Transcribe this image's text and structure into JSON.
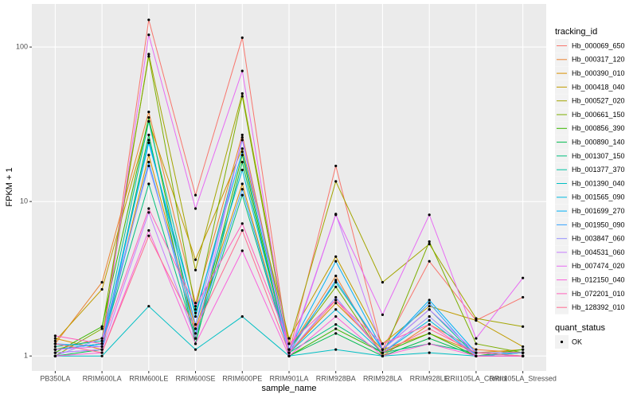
{
  "chart_data": {
    "type": "line",
    "x_label": "sample_name",
    "y_label": "FPKM + 1",
    "log_y": true,
    "grid": true,
    "legend_title": "tracking_id",
    "point_legend_title": "quant_status",
    "point_legend_label": "OK",
    "point_color": "#000000",
    "categories": [
      "PB350LA",
      "RRIM600LA",
      "RRIM600LE",
      "RRIM600SE",
      "RRIM600PE",
      "RRIM901LA",
      "RRIM928BA",
      "RRIM928LA",
      "RRIM928LE",
      "RRII105LA_Control",
      "RRII105LA_Stressed"
    ],
    "ylim": [
      0.8,
      190
    ],
    "yticks": [
      1,
      10,
      100
    ],
    "series": [
      {
        "name": "Hb_000069_650",
        "color": "#F8766D",
        "values": [
          1.1,
          1.2,
          150,
          11,
          115,
          1.05,
          17,
          1.1,
          4.1,
          1.7,
          2.4
        ]
      },
      {
        "name": "Hb_000317_120",
        "color": "#EA8331",
        "values": [
          1.2,
          3.0,
          38,
          2.2,
          27,
          1.1,
          3.3,
          1.0,
          1.6,
          1.1,
          1.05
        ]
      },
      {
        "name": "Hb_000390_010",
        "color": "#D89000",
        "values": [
          1.3,
          1.1,
          20,
          1.5,
          13,
          1.05,
          2.2,
          1.1,
          1.4,
          1.05,
          1.1
        ]
      },
      {
        "name": "Hb_000418_040",
        "color": "#C09B00",
        "values": [
          1.25,
          2.7,
          33,
          4.2,
          22,
          1.3,
          4.4,
          1.2,
          2.1,
          1.7,
          1.15
        ]
      },
      {
        "name": "Hb_000527_020",
        "color": "#A3A500",
        "values": [
          1.1,
          1.3,
          90,
          3.6,
          50,
          1.2,
          13.5,
          3.0,
          5.3,
          1.75,
          1.55
        ]
      },
      {
        "name": "Hb_000661_150",
        "color": "#7CAE00",
        "values": [
          1.0,
          1.5,
          87,
          2.0,
          48,
          1.1,
          2.8,
          1.0,
          5.5,
          1.2,
          1.05
        ]
      },
      {
        "name": "Hb_000856_390",
        "color": "#39B600",
        "values": [
          1.05,
          1.55,
          35,
          1.3,
          20,
          1.0,
          1.5,
          1.05,
          1.4,
          1.0,
          1.1
        ]
      },
      {
        "name": "Hb_000890_140",
        "color": "#00BB4E",
        "values": [
          1.0,
          1.1,
          27,
          1.2,
          18,
          1.0,
          1.4,
          1.0,
          1.3,
          1.0,
          1.05
        ]
      },
      {
        "name": "Hb_001307_150",
        "color": "#00BF7D",
        "values": [
          1.1,
          1.2,
          13,
          1.3,
          11,
          1.05,
          1.6,
          1.05,
          1.2,
          1.05,
          1.0
        ]
      },
      {
        "name": "Hb_001377_370",
        "color": "#00C1A3",
        "values": [
          1.15,
          1.25,
          33,
          1.8,
          25,
          1.1,
          3.0,
          1.1,
          2.0,
          1.0,
          1.05
        ]
      },
      {
        "name": "Hb_001390_040",
        "color": "#00BFC4",
        "values": [
          1.0,
          1.0,
          2.1,
          1.1,
          1.8,
          1.0,
          1.1,
          1.0,
          1.05,
          1.0,
          1.0
        ]
      },
      {
        "name": "Hb_001565_090",
        "color": "#00BAE0",
        "values": [
          1.05,
          1.1,
          25,
          1.6,
          16,
          1.05,
          2.0,
          1.05,
          1.7,
          1.0,
          1.05
        ]
      },
      {
        "name": "Hb_001699_270",
        "color": "#00B0F6",
        "values": [
          1.1,
          1.2,
          24,
          1.9,
          21,
          1.1,
          4.1,
          1.1,
          2.3,
          1.05,
          1.05
        ]
      },
      {
        "name": "Hb_001950_090",
        "color": "#35A2FF",
        "values": [
          1.2,
          1.15,
          18,
          1.4,
          12,
          1.05,
          3.1,
          1.1,
          2.2,
          1.0,
          1.0
        ]
      },
      {
        "name": "Hb_003847_060",
        "color": "#9590FF",
        "values": [
          1.0,
          1.3,
          17,
          1.6,
          25,
          1.05,
          2.4,
          1.05,
          1.8,
          1.0,
          1.0
        ]
      },
      {
        "name": "Hb_004531_060",
        "color": "#C77CFF",
        "values": [
          1.05,
          1.1,
          8.5,
          1.3,
          26,
          1.0,
          8.3,
          1.1,
          2.0,
          1.05,
          1.05
        ]
      },
      {
        "name": "Hb_007474_020",
        "color": "#E76BF3",
        "values": [
          1.1,
          1.15,
          120,
          9,
          70,
          1.05,
          8.2,
          1.85,
          8.2,
          1.3,
          3.2
        ]
      },
      {
        "name": "Hb_012150_040",
        "color": "#FA62DB",
        "values": [
          1.0,
          1.05,
          6.5,
          1.2,
          4.8,
          1.0,
          1.8,
          1.0,
          1.2,
          1.0,
          1.0
        ]
      },
      {
        "name": "Hb_072201_010",
        "color": "#FF62BC",
        "values": [
          1.35,
          1.2,
          9,
          2.1,
          7.2,
          1.2,
          2.3,
          1.2,
          1.6,
          1.0,
          1.0
        ]
      },
      {
        "name": "Hb_128392_010",
        "color": "#FF6C91",
        "values": [
          1.2,
          1.05,
          6,
          1.5,
          6.5,
          1.05,
          2.3,
          1.05,
          1.5,
          1.05,
          1.0
        ]
      }
    ]
  }
}
